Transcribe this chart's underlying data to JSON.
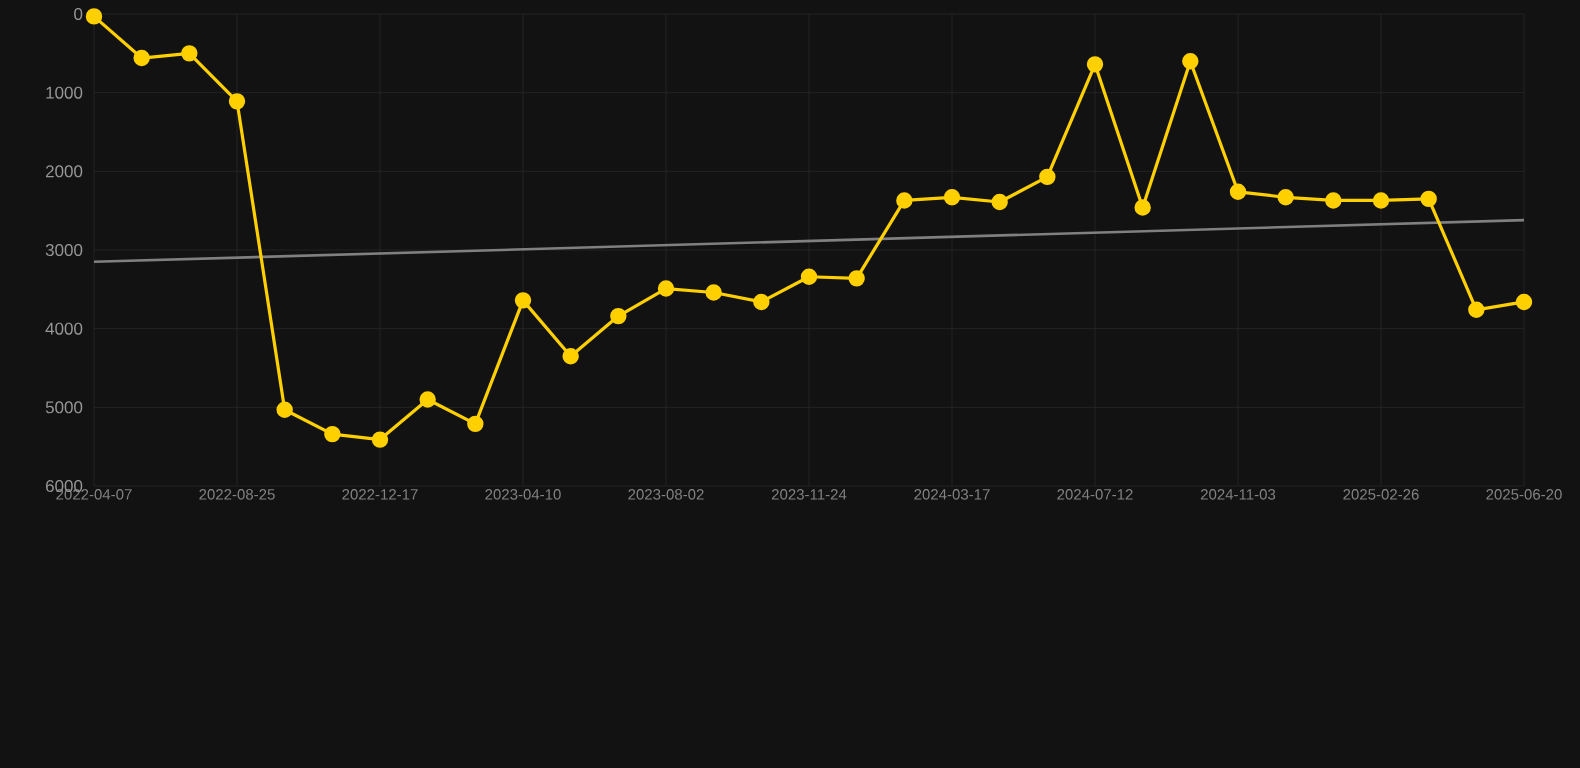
{
  "chart_data": {
    "type": "line",
    "categories": [
      "2022-04-07",
      null,
      null,
      "2022-08-25",
      null,
      null,
      "2022-12-17",
      null,
      null,
      "2023-04-10",
      null,
      null,
      "2023-08-02",
      null,
      null,
      "2023-11-24",
      null,
      null,
      "2024-03-17",
      null,
      null,
      "2024-07-12",
      null,
      null,
      "2024-11-03",
      null,
      null,
      "2025-02-26",
      null,
      null,
      "2025-06-20"
    ],
    "series": [
      {
        "color": "#ffd000",
        "values": [
          30,
          560,
          500,
          1110,
          5030,
          5340,
          5410,
          4900,
          5210,
          3640,
          4350,
          3840,
          3490,
          3540,
          3660,
          3340,
          3360,
          2370,
          2330,
          2390,
          2070,
          640,
          2460,
          600,
          2260,
          2330,
          2370,
          2370,
          2350,
          3760,
          3660
        ]
      },
      {
        "type": "line",
        "marker": "none",
        "color": "#808080",
        "values": [
          3150,
          null,
          null,
          null,
          null,
          null,
          null,
          null,
          null,
          null,
          null,
          null,
          null,
          null,
          null,
          null,
          null,
          null,
          null,
          null,
          null,
          null,
          null,
          null,
          null,
          null,
          null,
          null,
          null,
          null,
          2620
        ]
      }
    ],
    "ylim": [
      6000,
      0
    ],
    "yticks": [
      0,
      1000,
      2000,
      3000,
      4000,
      5000,
      6000
    ],
    "grid": true,
    "marker": "circle",
    "line_style": "solid"
  }
}
